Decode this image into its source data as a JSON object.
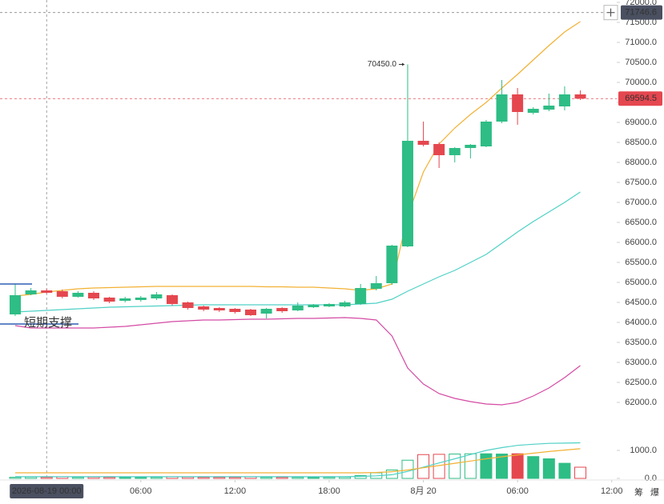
{
  "chart_data": {
    "type": "candlestick",
    "open": [
      64200,
      64700,
      64800,
      64780,
      64640,
      64740,
      64620,
      64540,
      64560,
      64600,
      64680,
      64500,
      64400,
      64360,
      64340,
      64320,
      64220,
      64360,
      64300,
      64380,
      64400,
      64400,
      64460,
      64840,
      64980,
      65900,
      68540,
      68460,
      68180,
      68360,
      68400,
      69020,
      69700,
      69240,
      69320,
      69400,
      69700
    ],
    "high": [
      64960,
      64860,
      64840,
      64820,
      64780,
      64780,
      64640,
      64640,
      64660,
      64760,
      64700,
      64520,
      64420,
      64380,
      64360,
      64340,
      64360,
      64380,
      64500,
      64460,
      64480,
      64540,
      64960,
      65160,
      65940,
      70450,
      69020,
      68500,
      68380,
      68460,
      69060,
      70060,
      69860,
      69380,
      69720,
      69900,
      69800
    ],
    "low": [
      64160,
      64680,
      64720,
      64600,
      64620,
      64560,
      64480,
      64500,
      64520,
      64560,
      64420,
      64320,
      64280,
      64260,
      64220,
      64160,
      64100,
      64240,
      64280,
      64360,
      64380,
      64380,
      64440,
      64800,
      64940,
      65880,
      68400,
      67860,
      68000,
      68100,
      68380,
      68980,
      68940,
      69200,
      69280,
      69300,
      69560
    ],
    "close": [
      64680,
      64800,
      64740,
      64640,
      64740,
      64600,
      64520,
      64600,
      64620,
      64700,
      64460,
      64360,
      64320,
      64300,
      64260,
      64180,
      64340,
      64280,
      64420,
      64440,
      64460,
      64500,
      64860,
      64980,
      65920,
      68540,
      68440,
      68180,
      68360,
      68440,
      69020,
      69700,
      69260,
      69340,
      69420,
      69700,
      69594.5
    ],
    "up_color": "#2ebd85",
    "down_color": "#e5474f",
    "series": [
      {
        "color": "#f2b134",
        "values": [
          64660,
          64700,
          64760,
          64800,
          64840,
          64860,
          64870,
          64880,
          64890,
          64900,
          64900,
          64900,
          64900,
          64900,
          64900,
          64900,
          64890,
          64890,
          64880,
          64880,
          64860,
          64840,
          64800,
          64840,
          64960,
          66660,
          67760,
          68460,
          68860,
          69200,
          69500,
          69860,
          70200,
          70560,
          70920,
          71260,
          71520
        ]
      },
      {
        "color": "#4fd1c5",
        "values": [
          64260,
          64280,
          64300,
          64320,
          64340,
          64360,
          64380,
          64390,
          64400,
          64410,
          64420,
          64430,
          64440,
          64440,
          64440,
          64440,
          64440,
          64440,
          64440,
          64440,
          64440,
          64440,
          64460,
          64480,
          64580,
          64780,
          64960,
          65140,
          65300,
          65500,
          65700,
          65980,
          66260,
          66520,
          66760,
          67000,
          67260
        ]
      },
      {
        "color": "#d44aa4",
        "values": [
          63920,
          63860,
          63860,
          63860,
          63860,
          63860,
          63880,
          63900,
          63940,
          63980,
          64020,
          64040,
          64060,
          64060,
          64070,
          64080,
          64080,
          64090,
          64100,
          64100,
          64110,
          64120,
          64100,
          64060,
          63660,
          62860,
          62460,
          62220,
          62100,
          62020,
          61960,
          61940,
          62000,
          62160,
          62360,
          62620,
          62920
        ]
      }
    ],
    "volume": [
      40,
      50,
      40,
      60,
      40,
      50,
      40,
      30,
      30,
      40,
      60,
      50,
      40,
      40,
      40,
      60,
      40,
      40,
      40,
      30,
      40,
      50,
      100,
      200,
      300,
      650,
      850,
      860,
      870,
      880,
      880,
      870,
      880,
      780,
      700,
      540,
      400
    ],
    "volume_series": [
      {
        "color": "#4fd1c5",
        "values": [
          60,
          60,
          60,
          60,
          60,
          60,
          60,
          60,
          60,
          60,
          60,
          60,
          60,
          60,
          60,
          60,
          60,
          60,
          60,
          60,
          60,
          60,
          70,
          90,
          130,
          250,
          400,
          550,
          700,
          850,
          1000,
          1100,
          1180,
          1220,
          1250,
          1260,
          1270
        ]
      },
      {
        "color": "#f2b134",
        "values": [
          200,
          200,
          200,
          200,
          200,
          200,
          200,
          200,
          200,
          200,
          200,
          200,
          200,
          200,
          200,
          200,
          200,
          200,
          200,
          200,
          200,
          200,
          200,
          210,
          240,
          300,
          380,
          460,
          540,
          620,
          700,
          770,
          840,
          900,
          960,
          1010,
          1060
        ]
      }
    ],
    "xlim": [
      -0.97,
      39.34
    ],
    "xticks": [
      {
        "value": 2,
        "label": "2026-08-19 00:00"
      },
      {
        "value": 8,
        "label": "06:00"
      },
      {
        "value": 14,
        "label": "12:00"
      },
      {
        "value": 20,
        "label": "18:00"
      },
      {
        "value": 26,
        "label": "8月 20"
      },
      {
        "value": 32,
        "label": "06:00"
      },
      {
        "value": 38,
        "label": "12:00"
      }
    ],
    "ylim": [
      61260,
      72060
    ],
    "yticks": [
      {
        "value": 72000,
        "label": "72000.0"
      },
      {
        "value": 71500,
        "label": "71500.0"
      },
      {
        "value": 71000,
        "label": "71000.0"
      },
      {
        "value": 70500,
        "label": "70500.0"
      },
      {
        "value": 70000,
        "label": "70000.0"
      },
      {
        "value": 69500,
        "label": "69500.0"
      },
      {
        "value": 69000,
        "label": "69000.0"
      },
      {
        "value": 68500,
        "label": "68500.0"
      },
      {
        "value": 68000,
        "label": "68000.0"
      },
      {
        "value": 67500,
        "label": "67500.0"
      },
      {
        "value": 67000,
        "label": "67000.0"
      },
      {
        "value": 66500,
        "label": "66500.0"
      },
      {
        "value": 66000,
        "label": "66000.0"
      },
      {
        "value": 65500,
        "label": "65500.0"
      },
      {
        "value": 65000,
        "label": "65000.0"
      },
      {
        "value": 64500,
        "label": "64500.0"
      },
      {
        "value": 64000,
        "label": "64000.0"
      },
      {
        "value": 63500,
        "label": "63500.0"
      },
      {
        "value": 63000,
        "label": "63000.0"
      },
      {
        "value": 62500,
        "label": "62500.0"
      },
      {
        "value": 62000,
        "label": "62000.0"
      }
    ],
    "volume_ylim": [
      0,
      1657
    ],
    "volume_yticks": [
      {
        "value": 1000,
        "label": "1000.0"
      },
      {
        "value": 0,
        "label": "0.0"
      }
    ],
    "crosshair": {
      "value": 71746.6,
      "label": "71746.6",
      "x": 2
    },
    "max_label": "70450.0",
    "drawings": [
      {
        "price": 64960
      },
      {
        "price": 63960,
        "label": "短期支撑"
      }
    ],
    "toolbar": [
      "筹",
      "爆"
    ]
  }
}
